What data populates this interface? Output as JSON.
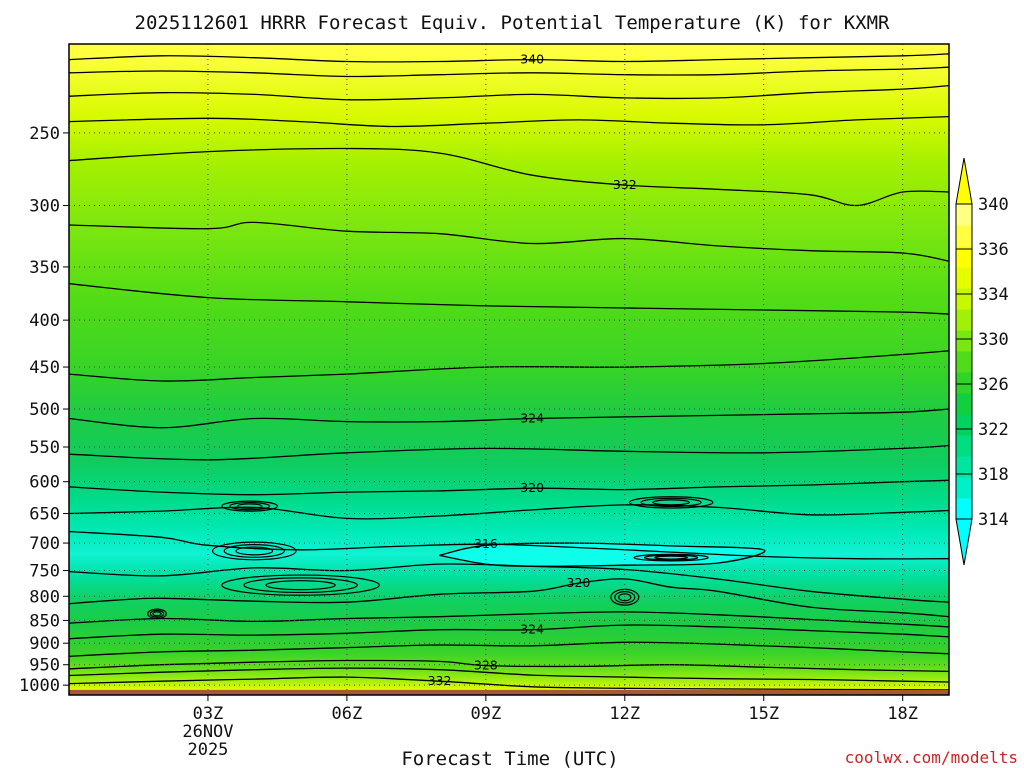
{
  "chart_data": {
    "type": "contour",
    "title": "2025112601 HRRR Forecast Equiv. Potential Temperature (K) for KXMR",
    "xlabel": "Forecast Time (UTC)",
    "ylabel": "",
    "credit": "coolwx.com/modelts",
    "x_ticks": [
      {
        "hour": 3,
        "label": "03Z"
      },
      {
        "hour": 6,
        "label": "06Z"
      },
      {
        "hour": 9,
        "label": "09Z"
      },
      {
        "hour": 12,
        "label": "12Z"
      },
      {
        "hour": 15,
        "label": "15Z"
      },
      {
        "hour": 18,
        "label": "18Z"
      }
    ],
    "x_date_lines": [
      "26NOV",
      "2025"
    ],
    "xlim": [
      0,
      19
    ],
    "y_ticks": [
      250,
      300,
      350,
      400,
      450,
      500,
      550,
      600,
      650,
      700,
      750,
      800,
      850,
      900,
      950,
      1000
    ],
    "ylim": [
      1025,
      200
    ],
    "y_scale": "log",
    "grid": true,
    "colorbar": {
      "levels": [
        314,
        316,
        318,
        320,
        322,
        324,
        326,
        328,
        330,
        332,
        334,
        336,
        338,
        340
      ],
      "labels": [
        "314",
        "318",
        "322",
        "326",
        "330",
        "334",
        "336",
        "340"
      ],
      "colors": [
        "#00ffff",
        "#00f0c8",
        "#00e6a0",
        "#00dc80",
        "#00d260",
        "#10d040",
        "#30d428",
        "#50dc18",
        "#78e810",
        "#a0f008",
        "#c8f800",
        "#e8fc00",
        "#ffff00",
        "#ffff40",
        "#ffff80"
      ]
    },
    "contours": [
      {
        "value": 340,
        "label": "340",
        "points": [
          [
            0,
            208
          ],
          [
            2,
            206
          ],
          [
            4,
            207
          ],
          [
            6,
            209
          ],
          [
            8,
            209
          ],
          [
            10,
            208
          ],
          [
            12,
            209
          ],
          [
            14,
            208
          ],
          [
            16,
            207
          ],
          [
            18,
            206
          ],
          [
            19,
            205
          ]
        ]
      },
      {
        "value": 338,
        "points": [
          [
            0,
            215
          ],
          [
            2,
            214
          ],
          [
            4,
            215
          ],
          [
            6,
            217
          ],
          [
            8,
            216
          ],
          [
            10,
            215
          ],
          [
            12,
            216
          ],
          [
            14,
            216
          ],
          [
            16,
            214
          ],
          [
            18,
            213
          ],
          [
            19,
            212
          ]
        ]
      },
      {
        "value": 336,
        "points": [
          [
            0,
            228
          ],
          [
            2,
            226
          ],
          [
            4,
            227
          ],
          [
            6,
            230
          ],
          [
            8,
            229
          ],
          [
            10,
            227
          ],
          [
            12,
            229
          ],
          [
            14,
            229
          ],
          [
            16,
            226
          ],
          [
            18,
            224
          ],
          [
            19,
            222
          ]
        ]
      },
      {
        "value": 334,
        "points": [
          [
            0,
            243
          ],
          [
            3,
            241
          ],
          [
            5,
            243
          ],
          [
            7,
            246
          ],
          [
            9,
            244
          ],
          [
            11,
            242
          ],
          [
            13,
            244
          ],
          [
            15,
            245
          ],
          [
            17,
            242
          ],
          [
            19,
            240
          ]
        ]
      },
      {
        "value": 332,
        "label": "332",
        "points": [
          [
            0,
            268
          ],
          [
            3,
            262
          ],
          [
            6,
            260
          ],
          [
            8,
            263
          ],
          [
            10,
            278
          ],
          [
            12,
            285
          ],
          [
            14,
            288
          ],
          [
            16,
            292
          ],
          [
            17,
            300
          ],
          [
            18,
            290
          ],
          [
            19,
            290
          ]
        ]
      },
      {
        "value": 330,
        "points": [
          [
            0,
            315
          ],
          [
            3,
            318
          ],
          [
            4,
            313
          ],
          [
            6,
            320
          ],
          [
            8,
            322
          ],
          [
            10,
            330
          ],
          [
            12,
            326
          ],
          [
            14,
            332
          ],
          [
            16,
            336
          ],
          [
            18,
            338
          ],
          [
            19,
            345
          ]
        ]
      },
      {
        "value": 328,
        "points": [
          [
            0,
            365
          ],
          [
            3,
            378
          ],
          [
            6,
            382
          ],
          [
            9,
            386
          ],
          [
            12,
            388
          ],
          [
            15,
            390
          ],
          [
            18,
            392
          ],
          [
            19,
            394
          ]
        ]
      },
      {
        "value": 326,
        "points": [
          [
            0,
            458
          ],
          [
            2,
            466
          ],
          [
            4,
            462
          ],
          [
            6,
            458
          ],
          [
            9,
            450
          ],
          [
            12,
            450
          ],
          [
            15,
            446
          ],
          [
            18,
            436
          ],
          [
            19,
            432
          ]
        ]
      },
      {
        "value": 324,
        "label": "324",
        "points": [
          [
            0,
            512
          ],
          [
            2,
            524
          ],
          [
            4,
            512
          ],
          [
            6,
            516
          ],
          [
            8,
            516
          ],
          [
            10,
            512
          ],
          [
            12,
            510
          ],
          [
            14,
            508
          ],
          [
            16,
            506
          ],
          [
            18,
            504
          ],
          [
            19,
            500
          ]
        ]
      },
      {
        "value": 322,
        "points": [
          [
            0,
            560
          ],
          [
            3,
            568
          ],
          [
            6,
            558
          ],
          [
            9,
            552
          ],
          [
            12,
            556
          ],
          [
            15,
            558
          ],
          [
            18,
            552
          ],
          [
            19,
            548
          ]
        ]
      },
      {
        "value": 320,
        "label": "320",
        "points": [
          [
            0,
            608
          ],
          [
            2,
            616
          ],
          [
            4,
            620
          ],
          [
            6,
            616
          ],
          [
            8,
            614
          ],
          [
            10,
            610
          ],
          [
            12,
            612
          ],
          [
            14,
            608
          ],
          [
            16,
            605
          ],
          [
            18,
            600
          ],
          [
            19,
            598
          ]
        ]
      },
      {
        "value": 318,
        "points": [
          [
            0,
            650
          ],
          [
            2,
            646
          ],
          [
            4,
            640
          ],
          [
            6,
            658
          ],
          [
            8,
            654
          ],
          [
            10,
            644
          ],
          [
            12,
            636
          ],
          [
            14,
            640
          ],
          [
            16,
            652
          ],
          [
            18,
            648
          ],
          [
            19,
            645
          ]
        ]
      },
      {
        "value": 316,
        "label": "316",
        "points": [
          [
            0,
            680
          ],
          [
            2,
            690
          ],
          [
            3,
            704
          ],
          [
            5,
            712
          ],
          [
            7,
            706
          ],
          [
            9,
            702
          ],
          [
            11,
            708
          ],
          [
            13,
            716
          ],
          [
            15,
            724
          ],
          [
            17,
            728
          ],
          [
            19,
            728
          ]
        ]
      },
      {
        "value": 314,
        "points": [
          [
            8,
            722
          ],
          [
            9,
            704
          ],
          [
            11,
            700
          ],
          [
            13,
            705
          ],
          [
            15,
            712
          ],
          [
            14,
            736
          ],
          [
            12,
            740
          ],
          [
            10,
            742
          ],
          [
            9,
            738
          ],
          [
            8,
            722
          ]
        ]
      },
      {
        "value": 318,
        "points": [
          [
            0,
            752
          ],
          [
            2,
            760
          ],
          [
            4,
            745
          ],
          [
            6,
            750
          ],
          [
            8,
            738
          ],
          [
            10,
            742
          ],
          [
            12,
            748
          ],
          [
            14,
            766
          ],
          [
            16,
            790
          ],
          [
            18,
            806
          ],
          [
            19,
            812
          ]
        ]
      },
      {
        "value": 320,
        "label": "320",
        "points": [
          [
            0,
            815
          ],
          [
            1,
            808
          ],
          [
            2,
            804
          ],
          [
            4,
            810
          ],
          [
            6,
            812
          ],
          [
            8,
            796
          ],
          [
            10,
            790
          ],
          [
            11,
            774
          ],
          [
            12,
            766
          ],
          [
            13,
            782
          ],
          [
            14,
            790
          ],
          [
            16,
            822
          ],
          [
            18,
            834
          ],
          [
            19,
            842
          ]
        ]
      },
      {
        "value": 322,
        "points": [
          [
            0,
            856
          ],
          [
            2,
            846
          ],
          [
            4,
            852
          ],
          [
            6,
            846
          ],
          [
            8,
            842
          ],
          [
            10,
            836
          ],
          [
            12,
            832
          ],
          [
            14,
            838
          ],
          [
            16,
            848
          ],
          [
            18,
            858
          ],
          [
            19,
            864
          ]
        ]
      },
      {
        "value": 324,
        "label": "324",
        "points": [
          [
            0,
            890
          ],
          [
            2,
            880
          ],
          [
            4,
            882
          ],
          [
            6,
            878
          ],
          [
            8,
            870
          ],
          [
            10,
            870
          ],
          [
            12,
            860
          ],
          [
            14,
            864
          ],
          [
            16,
            872
          ],
          [
            18,
            880
          ],
          [
            19,
            886
          ]
        ]
      },
      {
        "value": 326,
        "points": [
          [
            0,
            930
          ],
          [
            2,
            920
          ],
          [
            4,
            916
          ],
          [
            6,
            910
          ],
          [
            8,
            904
          ],
          [
            10,
            906
          ],
          [
            12,
            898
          ],
          [
            14,
            902
          ],
          [
            16,
            910
          ],
          [
            18,
            920
          ],
          [
            19,
            924
          ]
        ]
      },
      {
        "value": 328,
        "label": "328",
        "points": [
          [
            0,
            960
          ],
          [
            2,
            950
          ],
          [
            4,
            944
          ],
          [
            6,
            940
          ],
          [
            8,
            942
          ],
          [
            9,
            952
          ],
          [
            11,
            954
          ],
          [
            13,
            950
          ],
          [
            15,
            956
          ],
          [
            17,
            962
          ],
          [
            19,
            966
          ]
        ]
      },
      {
        "value": 330,
        "points": [
          [
            0,
            976
          ],
          [
            2,
            968
          ],
          [
            4,
            962
          ],
          [
            6,
            958
          ],
          [
            8,
            962
          ],
          [
            10,
            975
          ],
          [
            12,
            980
          ],
          [
            14,
            984
          ],
          [
            16,
            986
          ],
          [
            18,
            990
          ],
          [
            19,
            992
          ]
        ]
      },
      {
        "value": 332,
        "label": "332",
        "points": [
          [
            0,
            996
          ],
          [
            2,
            990
          ],
          [
            4,
            985
          ],
          [
            6,
            980
          ],
          [
            8,
            990
          ],
          [
            10,
            1004
          ],
          [
            12,
            1008
          ],
          [
            15,
            1010
          ],
          [
            19,
            1012
          ]
        ]
      }
    ],
    "closed_contours": [
      {
        "value": 318,
        "center": [
          3.9,
          638
        ],
        "rx": 0.6,
        "ry": 8
      },
      {
        "value": 318,
        "center": [
          13.0,
          632
        ],
        "rx": 0.9,
        "ry": 9
      },
      {
        "value": 318,
        "center": [
          4.0,
          714
        ],
        "rx": 0.9,
        "ry": 16
      },
      {
        "value": 318,
        "center": [
          13.0,
          726
        ],
        "rx": 0.8,
        "ry": 6
      },
      {
        "value": 322,
        "center": [
          12.0,
          802
        ],
        "rx": 0.3,
        "ry": 16
      },
      {
        "value": 320,
        "center": [
          5.0,
          778
        ],
        "rx": 1.7,
        "ry": 20
      },
      {
        "value": 320,
        "center": [
          1.9,
          836
        ],
        "rx": 0.2,
        "ry": 10
      }
    ],
    "ground": {
      "pressure_top": 1012,
      "color": "#a85830"
    }
  }
}
